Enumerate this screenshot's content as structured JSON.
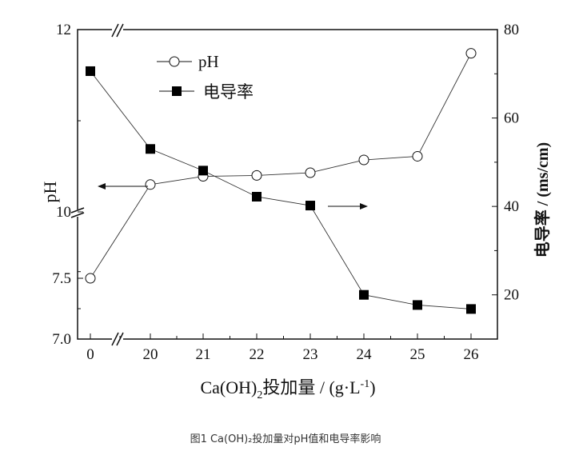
{
  "chart_data": {
    "type": "line",
    "categories": [
      "0",
      "20",
      "21",
      "22",
      "23",
      "24",
      "25",
      "26"
    ],
    "xlabel": "Ca(OH)",
    "xlabel_sub": "2",
    "xlabel_rest": "投加量 / (g·L",
    "xlabel_sup": "-1",
    "xlabel_end": ")",
    "ylabel_left": "pH",
    "ylabel_right": "电导率 / (ms/cm)",
    "left_ticks": [
      "12",
      "10",
      "7.5",
      "7.0"
    ],
    "right_ticks": [
      "80",
      "60",
      "40",
      "20"
    ],
    "left_axis_break": true,
    "x_axis_break": true,
    "right_ylim": [
      10,
      80
    ],
    "legend_position": "top-left",
    "series": [
      {
        "name": "pH",
        "axis": "left",
        "marker": "open-circle",
        "values": [
          7.5,
          10.3,
          10.39,
          10.4,
          10.43,
          10.57,
          10.61,
          11.74
        ]
      },
      {
        "name": "电导率",
        "axis": "right",
        "marker": "filled-square",
        "values": [
          70.6,
          53.0,
          48.1,
          42.2,
          40.2,
          20.0,
          17.7,
          16.8
        ]
      }
    ]
  },
  "caption": "图1 Ca(OH)₂投加量对pH值和电导率影响"
}
